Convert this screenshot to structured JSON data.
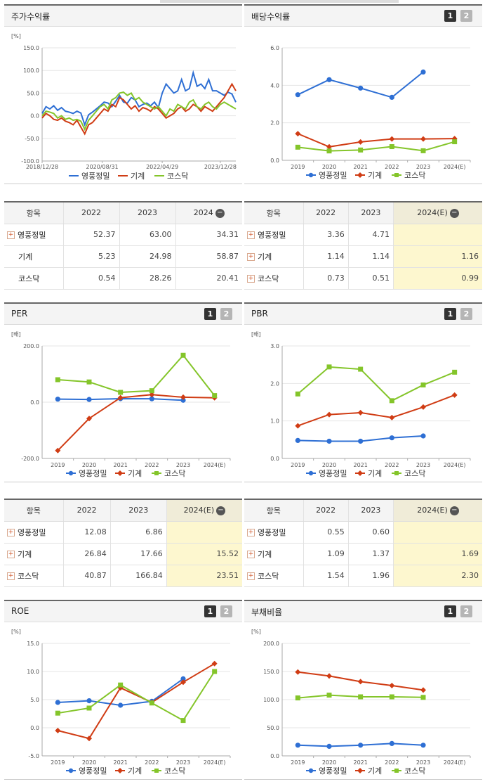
{
  "colors": {
    "yp": "#2e6fd4",
    "mach": "#d03c14",
    "kosdaq": "#84c52a"
  },
  "legend": [
    "영풍정밀",
    "기계",
    "코스닥"
  ],
  "panels": [
    {
      "id": "stock",
      "title": "주가수익률",
      "pager": false,
      "chart_data": {
        "type": "line",
        "title": "주가수익률",
        "unit": "[%]",
        "ylim": [
          -100,
          150
        ],
        "yticks": [
          "150.0",
          "100.0",
          "50.0",
          "0.0",
          "-50.0",
          "-100.0"
        ],
        "categories": [
          "2018/12/28",
          "2020/08/31",
          "2022/04/29",
          "2023/12/28"
        ],
        "xrange": [
          0,
          100
        ],
        "series": [
          {
            "name": "영풍정밀",
            "key": "yp",
            "marker": "none",
            "x": [
              0,
              2,
              4,
              6,
              8,
              10,
              12,
              14,
              16,
              18,
              20,
              22,
              24,
              26,
              28,
              30,
              32,
              34,
              36,
              38,
              40,
              42,
              44,
              46,
              48,
              50,
              52,
              54,
              56,
              58,
              60,
              62,
              64,
              66,
              68,
              70,
              72,
              74,
              76,
              78,
              80,
              82,
              84,
              86,
              88,
              90,
              92,
              94,
              96,
              98,
              100
            ],
            "y": [
              5,
              20,
              15,
              22,
              12,
              18,
              10,
              8,
              5,
              10,
              6,
              -20,
              2,
              8,
              15,
              22,
              30,
              28,
              20,
              32,
              45,
              30,
              28,
              40,
              35,
              20,
              25,
              28,
              22,
              30,
              18,
              50,
              70,
              60,
              50,
              55,
              80,
              55,
              60,
              95,
              65,
              70,
              60,
              80,
              55,
              55,
              50,
              45,
              52,
              48,
              30
            ]
          },
          {
            "name": "기계",
            "key": "mach",
            "marker": "none",
            "x": [
              0,
              2,
              4,
              6,
              8,
              10,
              12,
              14,
              16,
              18,
              20,
              22,
              24,
              26,
              28,
              30,
              32,
              34,
              36,
              38,
              40,
              42,
              44,
              46,
              48,
              50,
              52,
              54,
              56,
              58,
              60,
              62,
              64,
              66,
              68,
              70,
              72,
              74,
              76,
              78,
              80,
              82,
              84,
              86,
              88,
              90,
              92,
              94,
              96,
              98,
              100
            ],
            "y": [
              -5,
              5,
              0,
              -8,
              -10,
              -5,
              -12,
              -15,
              -20,
              -10,
              -25,
              -40,
              -20,
              -15,
              -5,
              5,
              15,
              10,
              25,
              20,
              40,
              35,
              25,
              15,
              22,
              10,
              18,
              15,
              10,
              20,
              15,
              5,
              -5,
              0,
              5,
              15,
              20,
              10,
              15,
              25,
              20,
              10,
              20,
              15,
              10,
              20,
              30,
              40,
              55,
              70,
              55
            ]
          },
          {
            "name": "코스닥",
            "key": "kosdaq",
            "marker": "none",
            "x": [
              0,
              2,
              4,
              6,
              8,
              10,
              12,
              14,
              16,
              18,
              20,
              22,
              24,
              26,
              28,
              30,
              32,
              34,
              36,
              38,
              40,
              42,
              44,
              46,
              48,
              50,
              52,
              54,
              56,
              58,
              60,
              62,
              64,
              66,
              68,
              70,
              72,
              74,
              76,
              78,
              80,
              82,
              84,
              86,
              88,
              90,
              92,
              94,
              96,
              98,
              100
            ],
            "y": [
              0,
              10,
              8,
              5,
              -5,
              0,
              -8,
              -5,
              -10,
              -8,
              -12,
              -30,
              -10,
              0,
              10,
              20,
              25,
              15,
              35,
              40,
              50,
              52,
              45,
              50,
              35,
              40,
              30,
              25,
              20,
              15,
              20,
              10,
              0,
              15,
              10,
              25,
              20,
              15,
              30,
              35,
              20,
              15,
              25,
              30,
              20,
              15,
              25,
              30,
              25,
              20,
              15
            ]
          }
        ]
      }
    },
    {
      "id": "dividend",
      "title": "배당수익률",
      "pager": true,
      "chart_data": {
        "type": "line",
        "title": "배당수익률",
        "unit": "",
        "ylim": [
          0,
          6
        ],
        "yticks": [
          "6.0",
          "4.0",
          "2.0",
          "0.0"
        ],
        "categories": [
          "2019",
          "2020",
          "2021",
          "2022",
          "2023",
          "2024(E)"
        ],
        "series": [
          {
            "name": "영풍정밀",
            "key": "yp",
            "marker": "circle",
            "values": [
              3.5,
              4.3,
              3.85,
              3.36,
              4.71,
              null
            ]
          },
          {
            "name": "기계",
            "key": "mach",
            "marker": "diamond",
            "values": [
              1.42,
              0.72,
              0.98,
              1.14,
              1.14,
              1.16
            ]
          },
          {
            "name": "코스닥",
            "key": "kosdaq",
            "marker": "square",
            "values": [
              0.7,
              0.5,
              0.55,
              0.73,
              0.51,
              0.99
            ]
          }
        ]
      }
    },
    {
      "id": "per",
      "title": "PER",
      "pager": true,
      "chart_data": {
        "type": "line",
        "title": "PER",
        "unit": "[배]",
        "ylim": [
          -200,
          200
        ],
        "yticks": [
          "200.0",
          "0.0",
          "-200.0"
        ],
        "categories": [
          "2019",
          "2020",
          "2021",
          "2022",
          "2023",
          "2024(E)"
        ],
        "series": [
          {
            "name": "영풍정밀",
            "key": "yp",
            "marker": "circle",
            "values": [
              10.8,
              9.7,
              12.5,
              12.08,
              6.86,
              null
            ]
          },
          {
            "name": "기계",
            "key": "mach",
            "marker": "diamond",
            "values": [
              -172,
              -58,
              16,
              26.84,
              17.66,
              15.52
            ]
          },
          {
            "name": "코스닥",
            "key": "kosdaq",
            "marker": "square",
            "values": [
              80,
              72,
              35,
              40.87,
              166.84,
              23.51
            ]
          }
        ]
      }
    },
    {
      "id": "pbr",
      "title": "PBR",
      "pager": true,
      "chart_data": {
        "type": "line",
        "title": "PBR",
        "unit": "[배]",
        "ylim": [
          0,
          3
        ],
        "yticks": [
          "3.0",
          "2.0",
          "1.0",
          "0.0"
        ],
        "categories": [
          "2019",
          "2020",
          "2021",
          "2022",
          "2023",
          "2024(E)"
        ],
        "series": [
          {
            "name": "영풍정밀",
            "key": "yp",
            "marker": "circle",
            "values": [
              0.48,
              0.46,
              0.46,
              0.55,
              0.6,
              null
            ]
          },
          {
            "name": "기계",
            "key": "mach",
            "marker": "diamond",
            "values": [
              0.87,
              1.17,
              1.22,
              1.09,
              1.37,
              1.69
            ]
          },
          {
            "name": "코스닥",
            "key": "kosdaq",
            "marker": "square",
            "values": [
              1.72,
              2.44,
              2.38,
              1.54,
              1.96,
              2.3
            ]
          }
        ]
      }
    },
    {
      "id": "roe",
      "title": "ROE",
      "pager": true,
      "chart_data": {
        "type": "line",
        "title": "ROE",
        "unit": "[%]",
        "ylim": [
          -5,
          15
        ],
        "yticks": [
          "15.0",
          "10.0",
          "5.0",
          "0.0",
          "-5.0"
        ],
        "categories": [
          "2019",
          "2020",
          "2021",
          "2022",
          "2023",
          "2024(E)"
        ],
        "series": [
          {
            "name": "영풍정밀",
            "key": "yp",
            "marker": "circle",
            "values": [
              4.5,
              4.8,
              4.0,
              4.7,
              8.7,
              null
            ]
          },
          {
            "name": "기계",
            "key": "mach",
            "marker": "diamond",
            "values": [
              -0.5,
              -1.9,
              7.1,
              4.5,
              8.1,
              11.4
            ]
          },
          {
            "name": "코스닥",
            "key": "kosdaq",
            "marker": "square",
            "values": [
              2.6,
              3.5,
              7.6,
              4.4,
              1.3,
              10.0
            ]
          }
        ]
      }
    },
    {
      "id": "debt",
      "title": "부채비율",
      "pager": true,
      "chart_data": {
        "type": "line",
        "title": "부채비율",
        "unit": "[%]",
        "ylim": [
          0,
          200
        ],
        "yticks": [
          "200.0",
          "150.0",
          "100.0",
          "50.0",
          "0.0"
        ],
        "categories": [
          "2019",
          "2020",
          "2021",
          "2022",
          "2023",
          "2024(E)"
        ],
        "series": [
          {
            "name": "영풍정밀",
            "key": "yp",
            "marker": "circle",
            "values": [
              19,
              17,
              19,
              22,
              19,
              null
            ]
          },
          {
            "name": "기계",
            "key": "mach",
            "marker": "diamond",
            "values": [
              149,
              142,
              132,
              125,
              117,
              null
            ]
          },
          {
            "name": "코스닥",
            "key": "kosdaq",
            "marker": "square",
            "values": [
              103,
              108,
              105,
              105,
              104,
              null
            ]
          }
        ]
      }
    }
  ],
  "tables": [
    {
      "id": "stock-table",
      "headers": [
        "항목",
        "2022",
        "2023",
        "2024"
      ],
      "est_col": false,
      "rows": [
        {
          "name": "영풍정밀",
          "plus": true,
          "values": [
            "52.37",
            "63.00",
            "34.31"
          ]
        },
        {
          "name": "기계",
          "plus": false,
          "values": [
            "5.23",
            "24.98",
            "58.87"
          ]
        },
        {
          "name": "코스닥",
          "plus": false,
          "values": [
            "0.54",
            "28.26",
            "20.41"
          ]
        }
      ]
    },
    {
      "id": "dividend-table",
      "headers": [
        "항목",
        "2022",
        "2023",
        "2024(E)"
      ],
      "est_col": true,
      "rows": [
        {
          "name": "영풍정밀",
          "plus": true,
          "values": [
            "3.36",
            "4.71",
            ""
          ]
        },
        {
          "name": "기계",
          "plus": true,
          "values": [
            "1.14",
            "1.14",
            "1.16"
          ]
        },
        {
          "name": "코스닥",
          "plus": true,
          "values": [
            "0.73",
            "0.51",
            "0.99"
          ]
        }
      ]
    },
    {
      "id": "per-table",
      "headers": [
        "항목",
        "2022",
        "2023",
        "2024(E)"
      ],
      "est_col": true,
      "rows": [
        {
          "name": "영풍정밀",
          "plus": true,
          "values": [
            "12.08",
            "6.86",
            ""
          ]
        },
        {
          "name": "기계",
          "plus": true,
          "values": [
            "26.84",
            "17.66",
            "15.52"
          ]
        },
        {
          "name": "코스닥",
          "plus": true,
          "values": [
            "40.87",
            "166.84",
            "23.51"
          ]
        }
      ]
    },
    {
      "id": "pbr-table",
      "headers": [
        "항목",
        "2022",
        "2023",
        "2024(E)"
      ],
      "est_col": true,
      "rows": [
        {
          "name": "영풍정밀",
          "plus": true,
          "values": [
            "0.55",
            "0.60",
            ""
          ]
        },
        {
          "name": "기계",
          "plus": true,
          "values": [
            "1.09",
            "1.37",
            "1.69"
          ]
        },
        {
          "name": "코스닥",
          "plus": true,
          "values": [
            "1.54",
            "1.96",
            "2.30"
          ]
        }
      ]
    }
  ]
}
